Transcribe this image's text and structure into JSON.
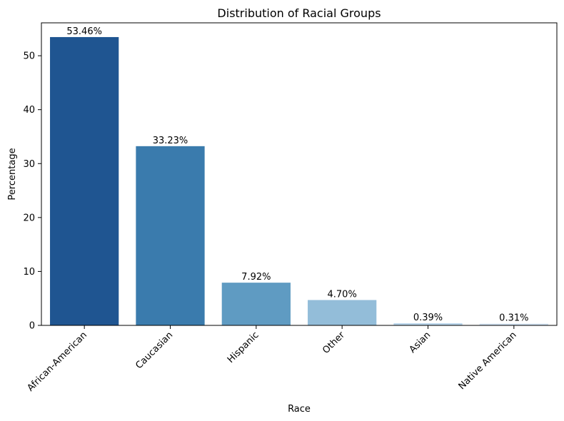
{
  "chart_data": {
    "type": "bar",
    "title": "Distribution of Racial Groups",
    "xlabel": "Race",
    "ylabel": "Percentage",
    "categories": [
      "African-American",
      "Caucasian",
      "Hispanic",
      "Other",
      "Asian",
      "Native American"
    ],
    "values": [
      53.46,
      33.23,
      7.92,
      4.7,
      0.39,
      0.31
    ],
    "data_labels": [
      "53.46%",
      "33.23%",
      "7.92%",
      "4.70%",
      "0.39%",
      "0.31%"
    ],
    "colors": [
      "#1f5591",
      "#3a7bad",
      "#5f9bc2",
      "#93bdd9",
      "#b7d4ea",
      "#cfe1f2"
    ],
    "ylim": [
      0,
      56.1
    ],
    "yticks": [
      0,
      10,
      20,
      30,
      40,
      50
    ],
    "ytick_labels": [
      "0",
      "10",
      "20",
      "30",
      "40",
      "50"
    ],
    "grid": false,
    "legend": "none"
  }
}
